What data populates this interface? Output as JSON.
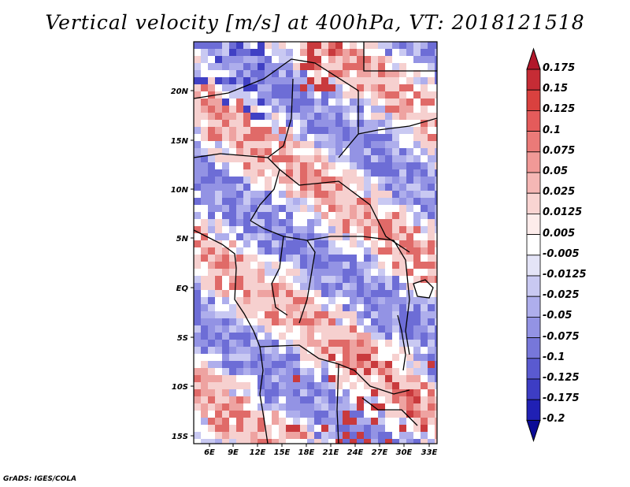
{
  "title": "Vertical velocity [m/s] at 400hPa, VT: 2018121518",
  "credit": "GrADS: IGES/COLA",
  "lon_ticks": [
    "6E",
    "9E",
    "12E",
    "15E",
    "18E",
    "21E",
    "24E",
    "27E",
    "30E",
    "33E"
  ],
  "lat_ticks": [
    "20N",
    "15N",
    "10N",
    "5N",
    "EQ",
    "5S",
    "10S",
    "15S"
  ],
  "colorbar": {
    "labels": [
      "0.175",
      "0.15",
      "0.125",
      "0.1",
      "0.075",
      "0.05",
      "0.025",
      "0.0125",
      "0.005",
      "-0.005",
      "-0.0125",
      "-0.025",
      "-0.05",
      "-0.075",
      "-0.1",
      "-0.125",
      "-0.175",
      "-0.2"
    ],
    "colors": [
      "#b2182b",
      "#c62c35",
      "#d9413f",
      "#e45b5b",
      "#eb7a78",
      "#f19997",
      "#f5b7b5",
      "#f9d4d2",
      "#fdeceb",
      "#ffffff",
      "#e4e4f7",
      "#c9c9f2",
      "#aeaeec",
      "#9393e4",
      "#7777da",
      "#5a5ad0",
      "#3d3dc4",
      "#2020b4",
      "#0b0b96"
    ]
  }
}
